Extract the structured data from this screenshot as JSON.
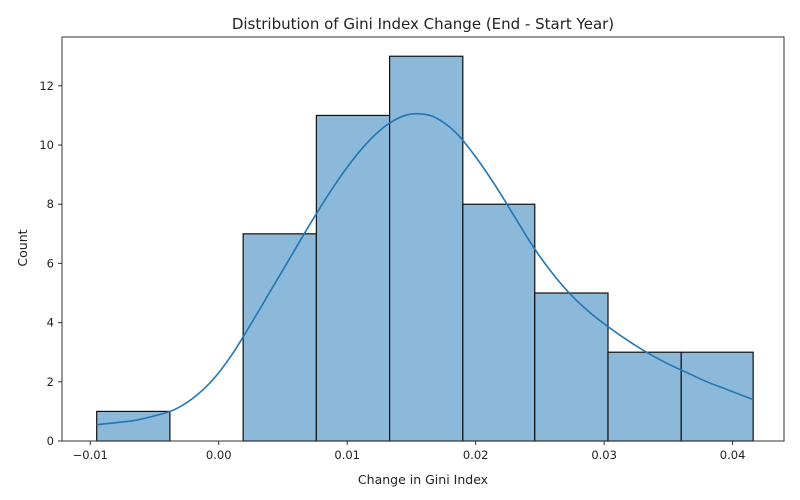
{
  "chart_data": {
    "type": "bar",
    "title": "Distribution of Gini Index Change (End - Start Year)",
    "xlabel": "Change in Gini Index",
    "ylabel": "Count",
    "xlim": [
      -0.0122,
      0.044
    ],
    "ylim": [
      0,
      13.65
    ],
    "bin_edges": [
      -0.0095,
      -0.0038,
      0.0019,
      0.0076,
      0.0133,
      0.019,
      0.0246,
      0.0303,
      0.036,
      0.0416
    ],
    "counts": [
      1,
      0,
      7,
      11,
      13,
      8,
      5,
      3,
      3
    ],
    "x_ticks": [
      -0.01,
      0.0,
      0.01,
      0.02,
      0.03,
      0.04
    ],
    "x_tick_labels": [
      "−0.01",
      "0.00",
      "0.01",
      "0.02",
      "0.03",
      "0.04"
    ],
    "y_ticks": [
      0,
      2,
      4,
      6,
      8,
      10,
      12
    ],
    "y_tick_labels": [
      "0",
      "2",
      "4",
      "6",
      "8",
      "10",
      "12"
    ],
    "kde": {
      "x": [
        -0.0095,
        -0.008,
        -0.0065,
        -0.005,
        -0.0035,
        -0.002,
        -0.0005,
        0.001,
        0.0025,
        0.004,
        0.0055,
        0.007,
        0.0085,
        0.01,
        0.0115,
        0.013,
        0.0145,
        0.0158,
        0.017,
        0.0185,
        0.02,
        0.0215,
        0.023,
        0.0245,
        0.026,
        0.0275,
        0.029,
        0.0305,
        0.032,
        0.0335,
        0.035,
        0.0365,
        0.038,
        0.0395,
        0.0416
      ],
      "y": [
        0.55,
        0.62,
        0.7,
        0.85,
        1.05,
        1.45,
        2.05,
        2.9,
        3.95,
        5.05,
        6.15,
        7.25,
        8.3,
        9.25,
        10.05,
        10.65,
        11.0,
        11.05,
        10.9,
        10.4,
        9.6,
        8.65,
        7.6,
        6.55,
        5.65,
        4.9,
        4.3,
        3.8,
        3.35,
        2.95,
        2.6,
        2.3,
        2.0,
        1.75,
        1.4
      ]
    },
    "colors": {
      "bar_fill": "#8cb8da",
      "bar_edge": "#111111",
      "kde_line": "#1f77b4",
      "axes": "#333333"
    },
    "grid": false,
    "legend": "none"
  }
}
